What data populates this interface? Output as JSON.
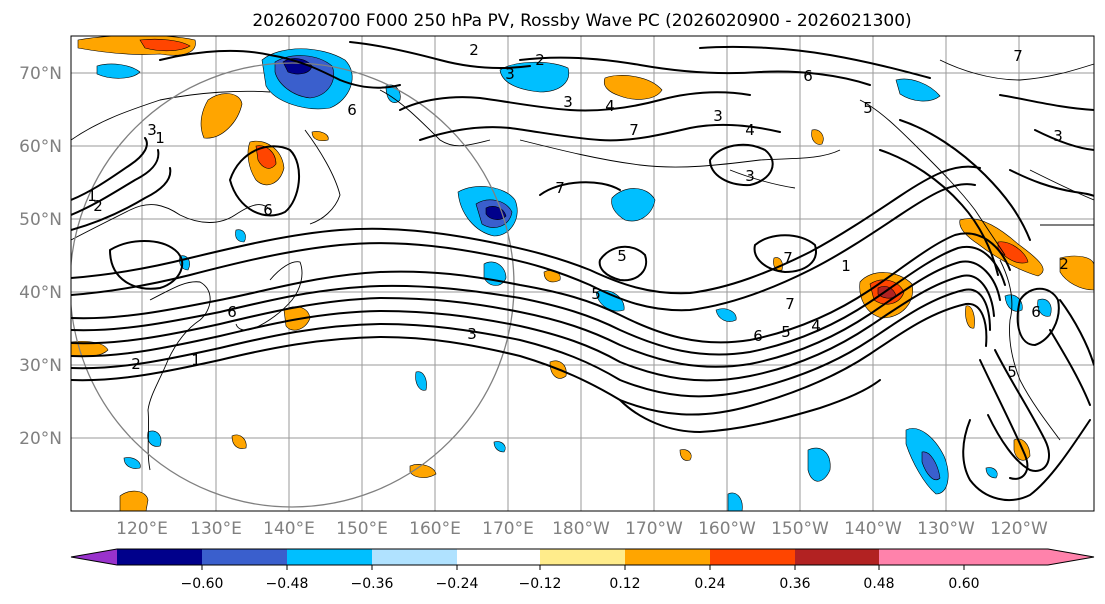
{
  "title": "2026020700 F000 250 hPa PV, Rossby Wave PC (2026020900 - 2026021300)",
  "lat_labels": [
    "70°N",
    "60°N",
    "50°N",
    "40°N",
    "30°N",
    "20°N"
  ],
  "lon_labels": [
    "120°E",
    "130°E",
    "140°E",
    "150°E",
    "160°E",
    "170°E",
    "180°W",
    "170°W",
    "160°W",
    "150°W",
    "140°W",
    "130°W",
    "120°W"
  ],
  "colorbar": {
    "ticks": [
      "−0.60",
      "−0.48",
      "−0.36",
      "−0.24",
      "−0.12",
      "0.12",
      "0.24",
      "0.36",
      "0.48",
      "0.60"
    ],
    "colors": [
      "#9932CC",
      "#00008B",
      "#3A5FCD",
      "#00BFFF",
      "#B0E2FF",
      "#FFFFFF",
      "#FFEC8B",
      "#FFA500",
      "#FF4500",
      "#B22222",
      "#FF82AB"
    ]
  },
  "contour_labels": [
    "2",
    "2",
    "3",
    "3",
    "4",
    "5",
    "6",
    "6",
    "7",
    "7",
    "3",
    "4",
    "3",
    "6",
    "1",
    "2",
    "1",
    "2",
    "3",
    "3",
    "6",
    "5",
    "7",
    "7",
    "6",
    "5",
    "4",
    "1",
    "3",
    "5",
    "6",
    "1",
    "7",
    "2",
    "5"
  ]
}
